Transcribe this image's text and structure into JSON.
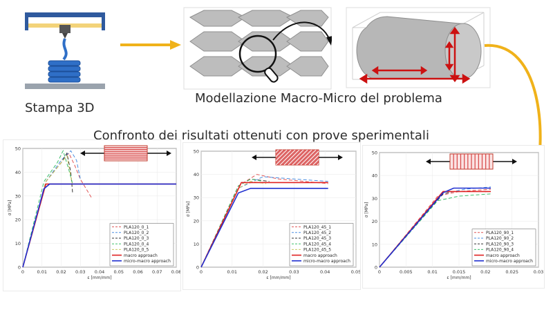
{
  "labels": {
    "printer": "Stampa 3D",
    "modelling": "Modellazione Macro-Micro del problema",
    "comparison": "Confronto dei risultati ottenuti con prove sperimentali"
  },
  "colors": {
    "arrow": "#f0b21a",
    "filament": "#2f6fc7",
    "frame": "#2f5a9e",
    "rail": "#f3d37a",
    "stripe": "#d64545",
    "cell": "#bdbdbd"
  },
  "chart_data": [
    {
      "type": "line",
      "id": "0",
      "title": "",
      "xlabel": "ε [mm/mm]",
      "ylabel": "σ [MPa]",
      "xlim": [
        0,
        0.08
      ],
      "ylim": [
        0,
        50
      ],
      "xticks": [
        "0",
        "0.01",
        "0.02",
        "0.03",
        "0.04",
        "0.05",
        "0.06",
        "0.07",
        "0.08"
      ],
      "yticks": [
        "0",
        "10",
        "20",
        "30",
        "40",
        "50"
      ],
      "legend_position": "bottom-right",
      "series": [
        {
          "name": "PLA120_0_1",
          "color": "#e05555",
          "dash": "5,3",
          "x": [
            0,
            0.012,
            0.02,
            0.024,
            0.027,
            0.03,
            0.036
          ],
          "y": [
            0,
            36,
            44,
            48,
            43,
            37,
            29
          ]
        },
        {
          "name": "PLA120_0_2",
          "color": "#4a8de0",
          "dash": "5,3",
          "x": [
            0,
            0.012,
            0.02,
            0.025,
            0.028,
            0.03
          ],
          "y": [
            0,
            36,
            45,
            49,
            45,
            37
          ]
        },
        {
          "name": "PLA120_0_3",
          "color": "#333333",
          "dash": "5,3",
          "x": [
            0,
            0.012,
            0.02,
            0.023,
            0.025,
            0.026
          ],
          "y": [
            0,
            36,
            44,
            48,
            40,
            31
          ]
        },
        {
          "name": "PLA120_0_4",
          "color": "#3cbf6a",
          "dash": "5,3",
          "x": [
            0,
            0.011,
            0.018,
            0.021,
            0.024,
            0.026
          ],
          "y": [
            0,
            36,
            44,
            49,
            41,
            35
          ]
        },
        {
          "name": "PLA120_0_5",
          "color": "#c8c860",
          "dash": "5,3",
          "x": [
            0,
            0.012,
            0.02,
            0.023,
            0.026
          ],
          "y": [
            0,
            36,
            44,
            47,
            34
          ]
        },
        {
          "name": "macro approach",
          "color": "#e02020",
          "dash": "",
          "x": [
            0,
            0.012,
            0.08
          ],
          "y": [
            0,
            35,
            35
          ]
        },
        {
          "name": "micro-macro approach",
          "color": "#2030d0",
          "dash": "",
          "x": [
            0,
            0.011,
            0.014,
            0.08
          ],
          "y": [
            0,
            33,
            35,
            35
          ]
        }
      ]
    },
    {
      "type": "line",
      "id": "45",
      "title": "",
      "xlabel": "ε [mm/mm]",
      "ylabel": "σ [MPa]",
      "xlim": [
        0,
        0.05
      ],
      "ylim": [
        0,
        50
      ],
      "xticks": [
        "0",
        "0.01",
        "0.02",
        "0.03",
        "0.04",
        "0.05"
      ],
      "yticks": [
        "0",
        "10",
        "20",
        "30",
        "40",
        "50"
      ],
      "legend_position": "bottom-right",
      "series": [
        {
          "name": "PLA120_45_1",
          "color": "#e05555",
          "dash": "5,3",
          "x": [
            0,
            0.012,
            0.018,
            0.025,
            0.041
          ],
          "y": [
            0,
            35,
            40,
            38,
            36
          ]
        },
        {
          "name": "PLA120_45_2",
          "color": "#4a8de0",
          "dash": "5,3",
          "x": [
            0,
            0.012,
            0.02,
            0.03,
            0.041
          ],
          "y": [
            0,
            34,
            39,
            38,
            37
          ]
        },
        {
          "name": "PLA120_45_3",
          "color": "#333333",
          "dash": "5,3",
          "x": [
            0,
            0.012,
            0.016,
            0.022
          ],
          "y": [
            0,
            35,
            38,
            37
          ]
        },
        {
          "name": "PLA120_45_4",
          "color": "#3cbf6a",
          "dash": "5,3",
          "x": [
            0,
            0.012,
            0.016,
            0.02
          ],
          "y": [
            0,
            35,
            38,
            37
          ]
        },
        {
          "name": "PLA120_45_5",
          "color": "#c8c860",
          "dash": "5,3",
          "x": [
            0,
            0.012,
            0.016,
            0.021
          ],
          "y": [
            0,
            34,
            37,
            36
          ]
        },
        {
          "name": "macro approach",
          "color": "#e02020",
          "dash": "",
          "x": [
            0,
            0.013,
            0.041
          ],
          "y": [
            0,
            36.5,
            36.5
          ]
        },
        {
          "name": "micro-macro approach",
          "color": "#2030d0",
          "dash": "",
          "x": [
            0,
            0.012,
            0.016,
            0.041
          ],
          "y": [
            0,
            32,
            34,
            34
          ]
        }
      ]
    },
    {
      "type": "line",
      "id": "90",
      "title": "",
      "xlabel": "ε [mm/mm]",
      "ylabel": "σ [MPa]",
      "xlim": [
        0,
        0.03
      ],
      "ylim": [
        0,
        50
      ],
      "xticks": [
        "0",
        "0.005",
        "0.01",
        "0.015",
        "0.02",
        "0.025",
        "0.03"
      ],
      "yticks": [
        "0",
        "10",
        "20",
        "30",
        "40",
        "50"
      ],
      "legend_position": "bottom-right",
      "series": [
        {
          "name": "PLA120_90_1",
          "color": "#e05555",
          "dash": "5,3",
          "x": [
            0,
            0.011,
            0.015,
            0.021
          ],
          "y": [
            0,
            31,
            33,
            34
          ]
        },
        {
          "name": "PLA120_90_2",
          "color": "#4a8de0",
          "dash": "5,3",
          "x": [
            0,
            0.012,
            0.016,
            0.021
          ],
          "y": [
            0,
            32,
            34,
            35
          ]
        },
        {
          "name": "PLA120_90_3",
          "color": "#333333",
          "dash": "5,3",
          "x": [
            0,
            0.012,
            0.014,
            0.021
          ],
          "y": [
            0,
            32,
            33,
            33
          ]
        },
        {
          "name": "PLA120_90_4",
          "color": "#3cbf6a",
          "dash": "5,3",
          "x": [
            0,
            0.011,
            0.015,
            0.021
          ],
          "y": [
            0,
            29,
            31,
            32
          ]
        },
        {
          "name": "macro approach",
          "color": "#e02020",
          "dash": "",
          "x": [
            0,
            0.012,
            0.021
          ],
          "y": [
            0,
            33,
            33
          ]
        },
        {
          "name": "micro-macro approach",
          "color": "#2030d0",
          "dash": "",
          "x": [
            0,
            0.012,
            0.014,
            0.021
          ],
          "y": [
            0,
            32.5,
            34.5,
            34.5
          ]
        }
      ]
    }
  ]
}
